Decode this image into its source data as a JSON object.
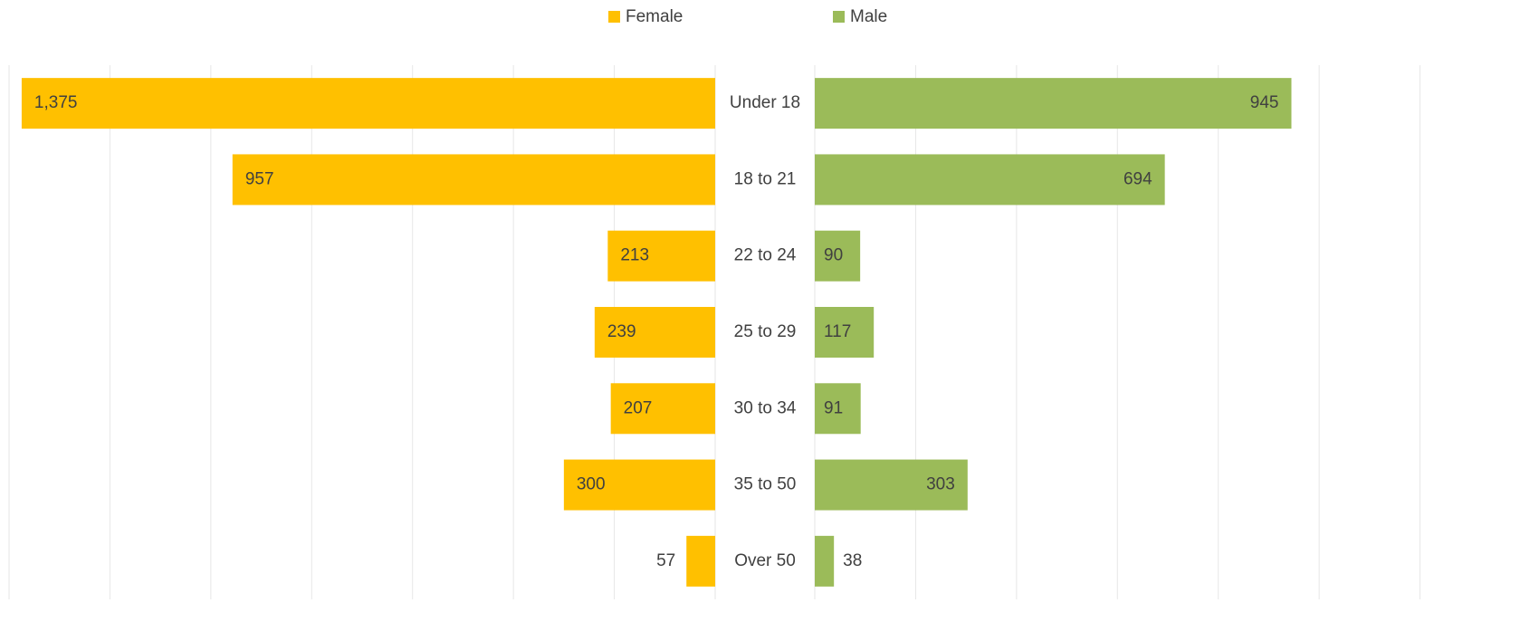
{
  "chart_data": {
    "type": "bar",
    "orientation": "butterfly",
    "categories": [
      "Under 18",
      "18 to 21",
      "22 to 24",
      "25 to 29",
      "30 to 34",
      "35 to 50",
      "Over 50"
    ],
    "series": [
      {
        "name": "Female",
        "color": "#ffc000",
        "side": "left",
        "values": [
          1375,
          957,
          213,
          239,
          207,
          300,
          57
        ],
        "value_labels": [
          "1,375",
          "957",
          "213",
          "239",
          "207",
          "300",
          "57"
        ]
      },
      {
        "name": "Male",
        "color": "#9bbb59",
        "side": "right",
        "values": [
          945,
          694,
          90,
          117,
          91,
          303,
          38
        ]
      }
    ],
    "xlim": [
      0,
      1400
    ],
    "xticks": [
      0,
      200,
      400,
      600,
      800,
      1000,
      1200,
      1400
    ],
    "grid": true,
    "legend": "top"
  }
}
